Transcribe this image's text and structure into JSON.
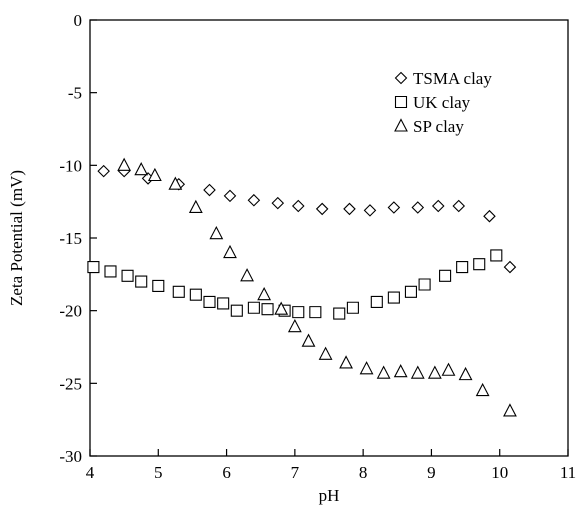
{
  "chart_data": {
    "type": "scatter",
    "xlabel": "pH",
    "ylabel": "Zeta Potential (mV)",
    "xlim": [
      4,
      11
    ],
    "ylim": [
      -30,
      0
    ],
    "xticks": [
      "4",
      "5",
      "6",
      "7",
      "8",
      "9",
      "10",
      "11"
    ],
    "yticks": [
      "0",
      "-5",
      "-10",
      "-15",
      "-20",
      "-25",
      "-30"
    ],
    "grid": false,
    "legend_position": "top-right",
    "series": [
      {
        "name": "TSMA clay",
        "marker": "diamond",
        "x": [
          4.2,
          4.5,
          4.85,
          5.3,
          5.75,
          6.05,
          6.4,
          6.75,
          7.05,
          7.4,
          7.8,
          8.1,
          8.45,
          8.8,
          9.1,
          9.4,
          9.85,
          10.15
        ],
        "y": [
          -10.4,
          -10.4,
          -10.9,
          -11.3,
          -11.7,
          -12.1,
          -12.4,
          -12.6,
          -12.8,
          -13.0,
          -13.0,
          -13.1,
          -12.9,
          -12.9,
          -12.8,
          -12.8,
          -13.5,
          -17.0
        ]
      },
      {
        "name": "UK clay",
        "marker": "square",
        "x": [
          4.05,
          4.3,
          4.55,
          4.75,
          5.0,
          5.3,
          5.55,
          5.75,
          5.95,
          6.15,
          6.4,
          6.6,
          6.85,
          7.05,
          7.3,
          7.65,
          7.85,
          8.2,
          8.45,
          8.7,
          8.9,
          9.2,
          9.45,
          9.7,
          9.95
        ],
        "y": [
          -17.0,
          -17.3,
          -17.6,
          -18.0,
          -18.3,
          -18.7,
          -18.9,
          -19.4,
          -19.5,
          -20.0,
          -19.8,
          -19.9,
          -20.0,
          -20.1,
          -20.1,
          -20.2,
          -19.8,
          -19.4,
          -19.1,
          -18.7,
          -18.2,
          -17.6,
          -17.0,
          -16.8,
          -16.2
        ]
      },
      {
        "name": "SP clay",
        "marker": "triangle",
        "x": [
          4.5,
          4.75,
          4.95,
          5.25,
          5.55,
          5.85,
          6.05,
          6.3,
          6.55,
          6.8,
          7.0,
          7.2,
          7.45,
          7.75,
          8.05,
          8.3,
          8.55,
          8.8,
          9.05,
          9.25,
          9.5,
          9.75,
          10.15
        ],
        "y": [
          -10.0,
          -10.3,
          -10.7,
          -11.3,
          -12.9,
          -14.7,
          -16.0,
          -17.6,
          -18.9,
          -19.9,
          -21.1,
          -22.1,
          -23.0,
          -23.6,
          -24.0,
          -24.3,
          -24.2,
          -24.3,
          -24.3,
          -24.1,
          -24.4,
          -25.5,
          -26.9
        ]
      }
    ]
  }
}
